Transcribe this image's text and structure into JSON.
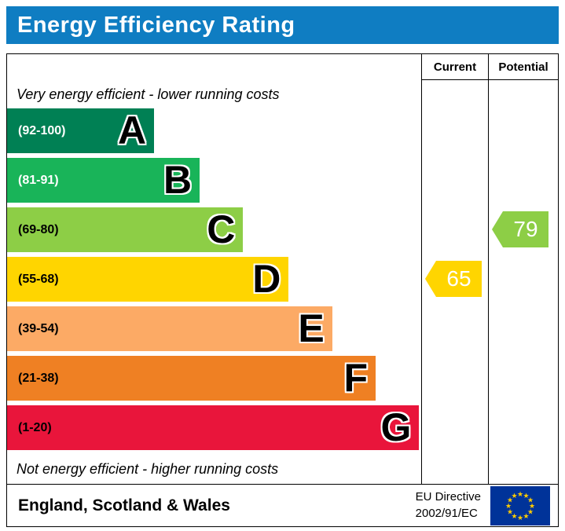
{
  "title": "Energy Efficiency Rating",
  "title_bar_color": "#0f7dc2",
  "columns": {
    "current": "Current",
    "potential": "Potential"
  },
  "notes": {
    "top": "Very energy efficient - lower running costs",
    "bottom": "Not energy efficient - higher running costs"
  },
  "bands": [
    {
      "letter": "A",
      "range": "(92-100)",
      "color": "#008054",
      "width_pct": 35.5,
      "label_color": "#ffffff"
    },
    {
      "letter": "B",
      "range": "(81-91)",
      "color": "#19b459",
      "width_pct": 46.5,
      "label_color": "#ffffff"
    },
    {
      "letter": "C",
      "range": "(69-80)",
      "color": "#8dce46",
      "width_pct": 57.0,
      "label_color": "#000000"
    },
    {
      "letter": "D",
      "range": "(55-68)",
      "color": "#ffd500",
      "width_pct": 68.0,
      "label_color": "#000000"
    },
    {
      "letter": "E",
      "range": "(39-54)",
      "color": "#fcaa65",
      "width_pct": 78.5,
      "label_color": "#000000"
    },
    {
      "letter": "F",
      "range": "(21-38)",
      "color": "#ef8023",
      "width_pct": 89.0,
      "label_color": "#000000"
    },
    {
      "letter": "G",
      "range": "(1-20)",
      "color": "#e9153b",
      "width_pct": 99.5,
      "label_color": "#000000"
    }
  ],
  "pointers": {
    "current": {
      "value": "65",
      "band": "D",
      "band_index": 3,
      "color": "#ffd500"
    },
    "potential": {
      "value": "79",
      "band": "C",
      "band_index": 2,
      "color": "#8dce46"
    }
  },
  "footer": {
    "region": "England, Scotland & Wales",
    "directive_line1": "EU Directive",
    "directive_line2": "2002/91/EC"
  },
  "flag": {
    "background": "#003399",
    "stars": "#ffcc00"
  },
  "chart_data": {
    "type": "bar",
    "title": "Energy Efficiency Rating",
    "scale": [
      1,
      100
    ],
    "bands": [
      {
        "letter": "A",
        "range": [
          92,
          100
        ]
      },
      {
        "letter": "B",
        "range": [
          81,
          91
        ]
      },
      {
        "letter": "C",
        "range": [
          69,
          80
        ]
      },
      {
        "letter": "D",
        "range": [
          55,
          68
        ]
      },
      {
        "letter": "E",
        "range": [
          39,
          54
        ]
      },
      {
        "letter": "F",
        "range": [
          21,
          38
        ]
      },
      {
        "letter": "G",
        "range": [
          1,
          20
        ]
      }
    ],
    "series": [
      {
        "name": "Current",
        "value": 65,
        "band": "D"
      },
      {
        "name": "Potential",
        "value": 79,
        "band": "C"
      }
    ],
    "top_annotation": "Very energy efficient - lower running costs",
    "bottom_annotation": "Not energy efficient - higher running costs",
    "region": "England, Scotland & Wales",
    "directive": "EU Directive 2002/91/EC"
  }
}
